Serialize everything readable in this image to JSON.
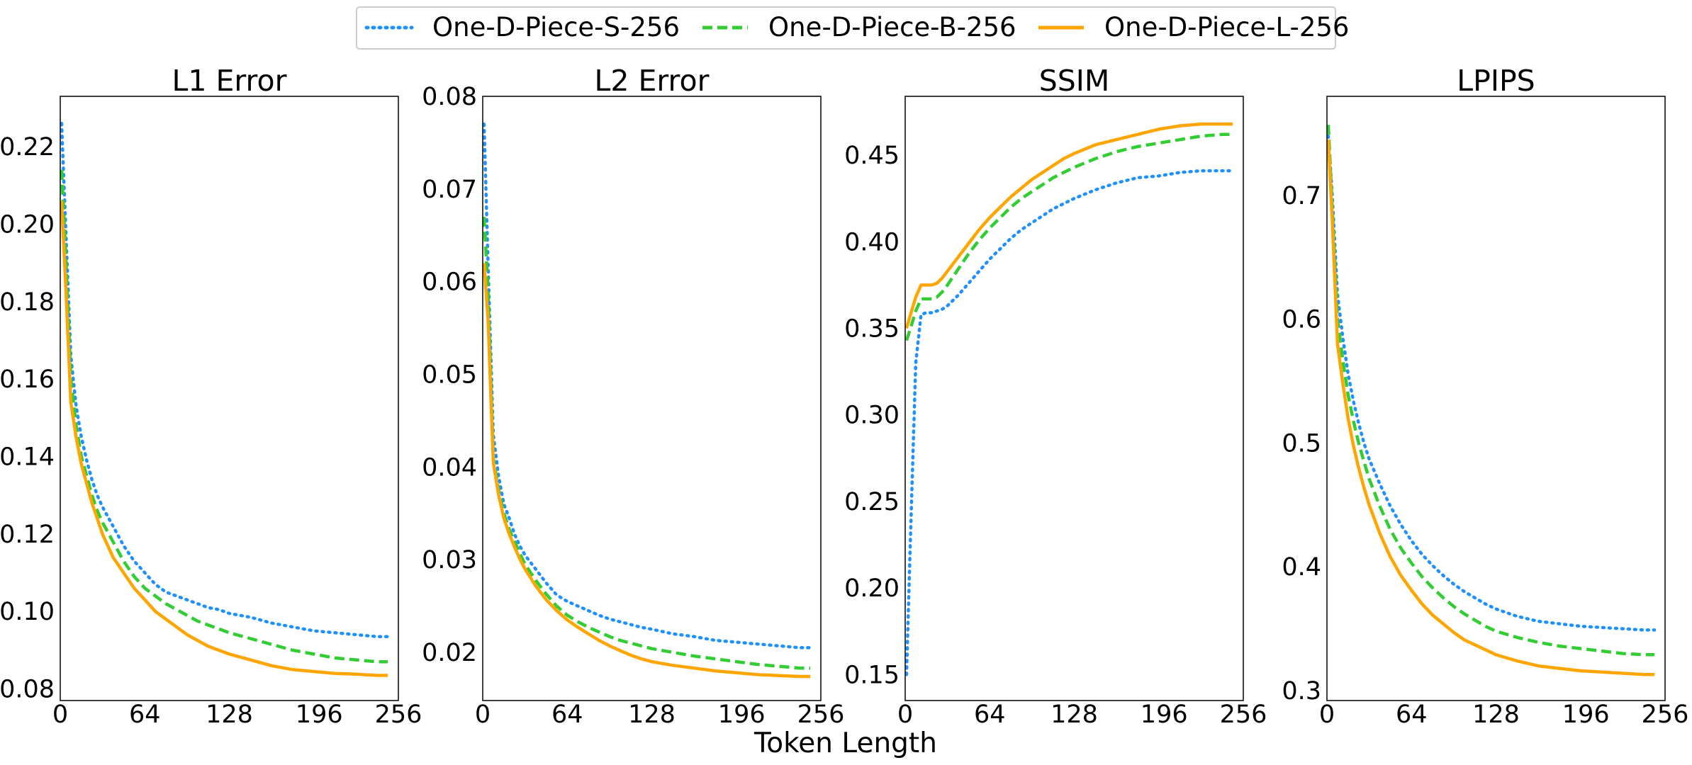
{
  "figure": {
    "xlabel": "Token Length",
    "legend": {
      "placement": "top-center",
      "entries": [
        {
          "name": "One-D-Piece-S-256",
          "color": "#1e90ff",
          "style": "dotted"
        },
        {
          "name": "One-D-Piece-B-256",
          "color": "#32cd32",
          "style": "dashed"
        },
        {
          "name": "One-D-Piece-L-256",
          "color": "#ffa500",
          "style": "solid"
        }
      ]
    }
  },
  "chart_data": [
    {
      "type": "line",
      "title": "L1 Error",
      "xlabel": "Token Length",
      "ylabel": "",
      "xlim": [
        0,
        256
      ],
      "ylim": [
        0.077,
        0.233
      ],
      "xticks": [
        0,
        64,
        128,
        196,
        256
      ],
      "yticks": [
        0.08,
        0.1,
        0.12,
        0.14,
        0.16,
        0.18,
        0.2,
        0.22
      ],
      "ytick_labels": [
        "0.08",
        "0.10",
        "0.12",
        "0.14",
        "0.16",
        "0.18",
        "0.20",
        "0.22"
      ],
      "x": [
        1,
        4,
        8,
        12,
        16,
        20,
        24,
        28,
        32,
        40,
        48,
        56,
        64,
        72,
        80,
        88,
        96,
        104,
        112,
        120,
        128,
        144,
        160,
        176,
        192,
        208,
        224,
        240,
        248
      ],
      "series": [
        {
          "name": "One-D-Piece-S-256",
          "values": [
            0.226,
            0.2,
            0.166,
            0.153,
            0.145,
            0.139,
            0.134,
            0.13,
            0.127,
            0.122,
            0.117,
            0.113,
            0.11,
            0.107,
            0.105,
            0.104,
            0.103,
            0.102,
            0.101,
            0.1005,
            0.0995,
            0.0985,
            0.097,
            0.096,
            0.095,
            0.0945,
            0.094,
            0.0935,
            0.0935
          ]
        },
        {
          "name": "One-D-Piece-B-256",
          "values": [
            0.214,
            0.193,
            0.16,
            0.148,
            0.14,
            0.135,
            0.13,
            0.126,
            0.123,
            0.118,
            0.113,
            0.109,
            0.106,
            0.104,
            0.102,
            0.1005,
            0.099,
            0.0975,
            0.0965,
            0.0955,
            0.0945,
            0.093,
            0.0915,
            0.09,
            0.089,
            0.088,
            0.0875,
            0.087,
            0.087
          ]
        },
        {
          "name": "One-D-Piece-L-256",
          "values": [
            0.206,
            0.185,
            0.154,
            0.145,
            0.138,
            0.133,
            0.128,
            0.124,
            0.12,
            0.114,
            0.11,
            0.106,
            0.103,
            0.1,
            0.098,
            0.096,
            0.094,
            0.0925,
            0.091,
            0.09,
            0.089,
            0.0875,
            0.086,
            0.085,
            0.0845,
            0.084,
            0.0838,
            0.0835,
            0.0835
          ]
        }
      ]
    },
    {
      "type": "line",
      "title": "L2 Error",
      "xlabel": "Token Length",
      "ylabel": "",
      "xlim": [
        0,
        256
      ],
      "ylim": [
        0.0148,
        0.08
      ],
      "xticks": [
        0,
        64,
        128,
        196,
        256
      ],
      "yticks": [
        0.02,
        0.03,
        0.04,
        0.05,
        0.06,
        0.07,
        0.08
      ],
      "ytick_labels": [
        "0.02",
        "0.03",
        "0.04",
        "0.05",
        "0.06",
        "0.07",
        "0.08"
      ],
      "x": [
        1,
        4,
        8,
        12,
        16,
        20,
        24,
        28,
        32,
        40,
        48,
        56,
        64,
        72,
        80,
        88,
        96,
        104,
        112,
        120,
        128,
        144,
        160,
        176,
        192,
        208,
        224,
        240,
        248
      ],
      "series": [
        {
          "name": "One-D-Piece-S-256",
          "values": [
            0.077,
            0.062,
            0.0435,
            0.039,
            0.036,
            0.0345,
            0.0328,
            0.0315,
            0.0305,
            0.029,
            0.0275,
            0.0262,
            0.0255,
            0.025,
            0.0245,
            0.024,
            0.0236,
            0.0233,
            0.023,
            0.0227,
            0.0225,
            0.022,
            0.0217,
            0.0213,
            0.0211,
            0.0209,
            0.0207,
            0.0205,
            0.0205
          ]
        },
        {
          "name": "One-D-Piece-B-256",
          "values": [
            0.067,
            0.059,
            0.041,
            0.0375,
            0.035,
            0.0333,
            0.032,
            0.0307,
            0.0295,
            0.0278,
            0.0263,
            0.025,
            0.024,
            0.0233,
            0.0227,
            0.0222,
            0.0217,
            0.0213,
            0.021,
            0.0207,
            0.0204,
            0.02,
            0.0196,
            0.0193,
            0.019,
            0.0187,
            0.0185,
            0.0183,
            0.0183
          ]
        },
        {
          "name": "One-D-Piece-L-256",
          "values": [
            0.062,
            0.056,
            0.0405,
            0.037,
            0.0345,
            0.0328,
            0.0314,
            0.0301,
            0.029,
            0.0272,
            0.0257,
            0.0245,
            0.0235,
            0.0227,
            0.022,
            0.0213,
            0.0207,
            0.0202,
            0.0197,
            0.0193,
            0.019,
            0.0186,
            0.0183,
            0.018,
            0.0178,
            0.0176,
            0.0175,
            0.0174,
            0.0174
          ]
        }
      ]
    },
    {
      "type": "line",
      "title": "SSIM",
      "xlabel": "Token Length",
      "ylabel": "",
      "xlim": [
        0,
        256
      ],
      "ylim": [
        0.135,
        0.484
      ],
      "xticks": [
        0,
        64,
        128,
        196,
        256
      ],
      "yticks": [
        0.15,
        0.2,
        0.25,
        0.3,
        0.35,
        0.4,
        0.45
      ],
      "ytick_labels": [
        "0.15",
        "0.20",
        "0.25",
        "0.30",
        "0.35",
        "0.40",
        "0.45"
      ],
      "x": [
        1,
        4,
        8,
        12,
        16,
        20,
        24,
        28,
        32,
        40,
        48,
        56,
        64,
        72,
        80,
        88,
        96,
        104,
        112,
        120,
        128,
        144,
        160,
        176,
        192,
        208,
        224,
        240,
        248
      ],
      "series": [
        {
          "name": "One-D-Piece-S-256",
          "values": [
            0.15,
            0.23,
            0.33,
            0.358,
            0.359,
            0.359,
            0.36,
            0.361,
            0.363,
            0.369,
            0.376,
            0.383,
            0.39,
            0.396,
            0.402,
            0.407,
            0.411,
            0.415,
            0.419,
            0.422,
            0.425,
            0.43,
            0.434,
            0.437,
            0.438,
            0.44,
            0.441,
            0.441,
            0.441
          ]
        },
        {
          "name": "One-D-Piece-B-256",
          "values": [
            0.343,
            0.35,
            0.36,
            0.367,
            0.367,
            0.367,
            0.368,
            0.371,
            0.375,
            0.384,
            0.393,
            0.401,
            0.408,
            0.414,
            0.42,
            0.425,
            0.429,
            0.433,
            0.437,
            0.44,
            0.443,
            0.448,
            0.452,
            0.455,
            0.457,
            0.459,
            0.461,
            0.462,
            0.462
          ]
        },
        {
          "name": "One-D-Piece-L-256",
          "values": [
            0.35,
            0.358,
            0.368,
            0.375,
            0.375,
            0.375,
            0.376,
            0.379,
            0.383,
            0.391,
            0.399,
            0.407,
            0.414,
            0.42,
            0.426,
            0.431,
            0.436,
            0.44,
            0.444,
            0.448,
            0.451,
            0.456,
            0.459,
            0.462,
            0.465,
            0.467,
            0.468,
            0.468,
            0.468
          ]
        }
      ]
    },
    {
      "type": "line",
      "title": "LPIPS",
      "xlabel": "Token Length",
      "ylabel": "",
      "xlim": [
        0,
        256
      ],
      "ylim": [
        0.292,
        0.78
      ],
      "xticks": [
        0,
        64,
        128,
        196,
        256
      ],
      "yticks": [
        0.3,
        0.4,
        0.5,
        0.6,
        0.7
      ],
      "ytick_labels": [
        "0.3",
        "0.4",
        "0.5",
        "0.6",
        "0.7"
      ],
      "x": [
        1,
        4,
        8,
        12,
        16,
        20,
        24,
        28,
        32,
        40,
        48,
        56,
        64,
        72,
        80,
        88,
        96,
        104,
        112,
        120,
        128,
        144,
        160,
        176,
        192,
        208,
        224,
        240,
        248
      ],
      "series": [
        {
          "name": "One-D-Piece-S-256",
          "values": [
            0.748,
            0.7,
            0.62,
            0.585,
            0.556,
            0.534,
            0.516,
            0.5,
            0.487,
            0.467,
            0.449,
            0.434,
            0.421,
            0.41,
            0.401,
            0.393,
            0.386,
            0.38,
            0.375,
            0.37,
            0.366,
            0.36,
            0.356,
            0.354,
            0.352,
            0.351,
            0.35,
            0.349,
            0.349
          ]
        },
        {
          "name": "One-D-Piece-B-256",
          "values": [
            0.757,
            0.69,
            0.6,
            0.567,
            0.539,
            0.518,
            0.5,
            0.485,
            0.471,
            0.449,
            0.43,
            0.415,
            0.403,
            0.392,
            0.383,
            0.375,
            0.368,
            0.362,
            0.357,
            0.352,
            0.348,
            0.343,
            0.339,
            0.336,
            0.334,
            0.332,
            0.33,
            0.329,
            0.329
          ]
        },
        {
          "name": "One-D-Piece-L-256",
          "values": [
            0.745,
            0.68,
            0.58,
            0.548,
            0.52,
            0.498,
            0.48,
            0.464,
            0.45,
            0.427,
            0.408,
            0.393,
            0.381,
            0.37,
            0.361,
            0.354,
            0.347,
            0.341,
            0.337,
            0.333,
            0.329,
            0.324,
            0.32,
            0.318,
            0.316,
            0.315,
            0.314,
            0.313,
            0.313
          ]
        }
      ]
    }
  ]
}
